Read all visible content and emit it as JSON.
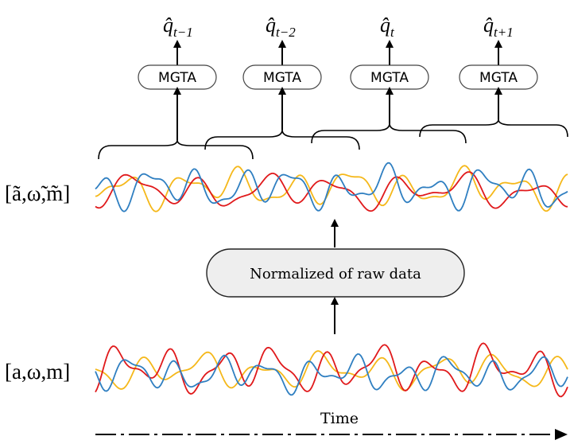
{
  "modules": [
    {
      "label": "MGTA",
      "output_hat": "q̂",
      "output_sub": "t−1"
    },
    {
      "label": "MGTA",
      "output_hat": "q̂",
      "output_sub": "t−2"
    },
    {
      "label": "MGTA",
      "output_hat": "q̂",
      "output_sub": "t"
    },
    {
      "label": "MGTA",
      "output_hat": "q̂",
      "output_sub": "t+1"
    }
  ],
  "normalized_signal_label": "[ã,ω̃,m̃]",
  "raw_signal_label": "[a,ω,m]",
  "process_box": {
    "label": "Normalized of raw data"
  },
  "time_axis": {
    "label": "Time"
  },
  "colors": {
    "series_blue": "#2f7fc1",
    "series_red": "#e0191b",
    "series_yellow": "#f5b81a",
    "box_fill": "#eeeeee",
    "stroke": "#000000"
  }
}
